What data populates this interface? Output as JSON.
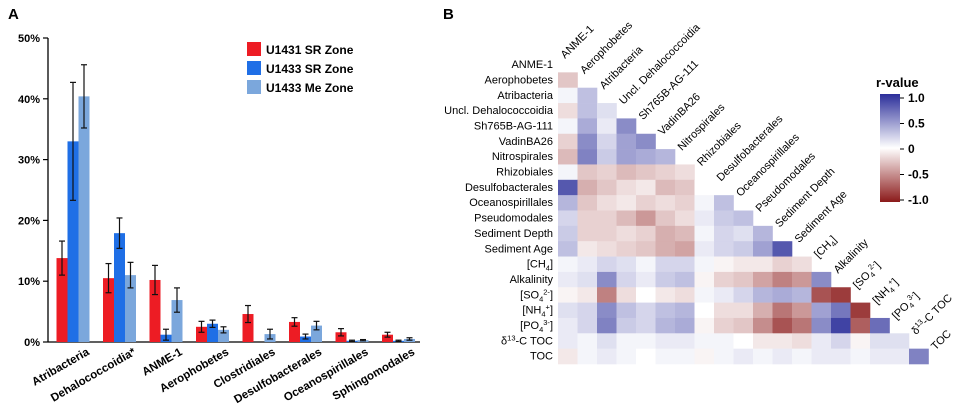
{
  "chart_data": [
    {
      "type": "bar",
      "panel_label": "A",
      "categories": [
        "Atribacteria",
        "Dehalococcoidia*",
        "ANME-1",
        "Aerophobetes",
        "Clostridiales",
        "Desulfobacterales",
        "Oceanospirillales",
        "Sphingomodales"
      ],
      "yticks": [
        "0%",
        "10%",
        "20%",
        "30%",
        "40%",
        "50%"
      ],
      "ylim": [
        0,
        50
      ],
      "series": [
        {
          "name": "U1431 SR Zone",
          "color": "#ed1c24",
          "values": [
            13.8,
            10.5,
            10.2,
            2.5,
            4.6,
            3.3,
            1.6,
            1.2
          ],
          "errors": [
            2.8,
            2.4,
            2.4,
            0.9,
            1.4,
            0.7,
            0.6,
            0.4
          ]
        },
        {
          "name": "U1433 SR Zone",
          "color": "#1f6fe6",
          "values": [
            33.0,
            17.9,
            1.2,
            3.0,
            0.0,
            0.9,
            0.2,
            0.2
          ],
          "errors": [
            9.7,
            2.5,
            0.9,
            0.6,
            0.0,
            0.4,
            0.1,
            0.1
          ]
        },
        {
          "name": "U1433 Me Zone",
          "color": "#7ba7dc",
          "values": [
            40.4,
            11.0,
            6.9,
            2.0,
            1.3,
            2.7,
            0.3,
            0.5
          ],
          "errors": [
            5.2,
            2.1,
            2.0,
            0.5,
            0.8,
            0.7,
            0.1,
            0.2
          ]
        }
      ]
    },
    {
      "type": "heatmap",
      "panel_label": "B",
      "row_labels": [
        "ANME-1",
        "Aerophobetes",
        "Atribacteria",
        "Uncl. Dehalococcoidia",
        "Sh765B-AG-111",
        "VadinBA26",
        "Nitrospirales",
        "Rhizobiales",
        "Desulfobacterales",
        "Oceanospirillales",
        "Pseudomodales",
        "Sediment Depth",
        "Sediment Age",
        "[CH4]",
        "Alkalinity",
        "[SO42-]",
        "[NH4+]",
        "[PO43-]",
        "δ13-C TOC",
        "TOC"
      ],
      "legend_title": "r-value",
      "legend_ticks": [
        "1.0",
        "0.5",
        "0",
        "-0.5",
        "-1.0"
      ],
      "color_min": "#8b1a1a",
      "color_mid": "#ffffff",
      "color_max": "#2b2e9a",
      "values": [
        [],
        [
          -0.25
        ],
        [
          0.05,
          0.3
        ],
        [
          -0.15,
          0.3,
          0.15
        ],
        [
          0.05,
          0.4,
          0.1,
          0.55
        ],
        [
          -0.2,
          0.55,
          0.2,
          0.45,
          0.55
        ],
        [
          -0.3,
          0.6,
          0.25,
          0.45,
          0.4,
          0.35
        ],
        [
          0.05,
          -0.25,
          -0.2,
          -0.3,
          -0.25,
          -0.2,
          -0.15
        ],
        [
          0.8,
          -0.35,
          -0.25,
          -0.15,
          -0.1,
          -0.3,
          -0.25,
          0.0
        ],
        [
          0.35,
          -0.25,
          -0.15,
          -0.1,
          -0.2,
          -0.15,
          -0.2,
          0.05,
          0.3
        ],
        [
          0.2,
          -0.2,
          -0.2,
          -0.3,
          -0.45,
          -0.25,
          -0.15,
          0.1,
          0.25,
          0.3
        ],
        [
          0.25,
          -0.2,
          -0.2,
          -0.15,
          -0.2,
          -0.35,
          -0.3,
          0.05,
          0.2,
          0.15,
          0.35
        ],
        [
          0.3,
          -0.1,
          -0.15,
          -0.2,
          -0.25,
          -0.35,
          -0.4,
          0.1,
          0.2,
          0.25,
          0.45,
          0.8
        ],
        [
          0.05,
          0.1,
          0.2,
          0.15,
          0.05,
          0.2,
          0.2,
          0.05,
          -0.05,
          -0.1,
          -0.1,
          -0.2,
          -0.15
        ],
        [
          0.1,
          0.15,
          0.55,
          0.2,
          0.1,
          0.25,
          0.3,
          -0.05,
          -0.2,
          -0.25,
          -0.4,
          -0.55,
          -0.45,
          0.55
        ],
        [
          -0.05,
          -0.1,
          -0.55,
          -0.15,
          0.0,
          -0.1,
          -0.15,
          0.05,
          0.1,
          0.2,
          0.35,
          0.4,
          0.35,
          -0.75,
          -0.85
        ],
        [
          0.15,
          0.2,
          0.55,
          0.3,
          0.2,
          0.3,
          0.35,
          0.0,
          -0.15,
          -0.15,
          -0.35,
          -0.6,
          -0.45,
          0.45,
          0.65,
          -0.85
        ],
        [
          0.1,
          0.2,
          0.6,
          0.25,
          0.2,
          0.35,
          0.4,
          -0.05,
          -0.2,
          -0.25,
          -0.5,
          -0.75,
          -0.6,
          0.55,
          0.9,
          -0.7,
          0.7
        ],
        [
          0.1,
          0.05,
          0.15,
          0.05,
          0.05,
          0.1,
          0.1,
          0.05,
          0.05,
          0.0,
          -0.1,
          -0.1,
          -0.15,
          0.1,
          0.2,
          -0.05,
          0.15,
          0.15
        ],
        [
          -0.1,
          0.05,
          0.1,
          0.05,
          0.0,
          0.05,
          0.05,
          -0.05,
          0.05,
          0.1,
          0.05,
          0.1,
          0.05,
          0.1,
          0.1,
          0.05,
          0.1,
          0.1,
          0.6
        ]
      ]
    }
  ]
}
